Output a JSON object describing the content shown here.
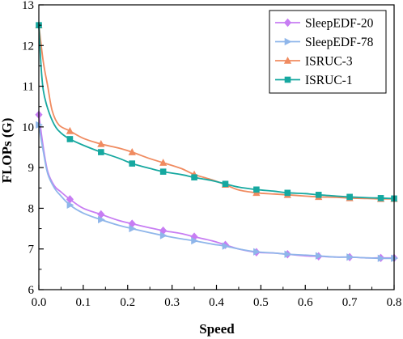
{
  "chart_data": {
    "type": "line",
    "xlabel": "Speed",
    "ylabel": "FLOPs (G)",
    "xlim": [
      0.0,
      0.8
    ],
    "ylim": [
      6,
      13
    ],
    "xticks": [
      "0.0",
      "0.1",
      "0.2",
      "0.3",
      "0.4",
      "0.5",
      "0.6",
      "0.7",
      "0.8"
    ],
    "yticks": [
      "6",
      "7",
      "8",
      "9",
      "10",
      "11",
      "12",
      "13"
    ],
    "grid": false,
    "legend_position": "top-right",
    "series": [
      {
        "name": "SleepEDF-20",
        "color": "#C77DF3",
        "marker": "diamond",
        "points": [
          [
            0.0,
            10.3
          ],
          [
            0.01,
            9.5
          ],
          [
            0.02,
            8.9
          ],
          [
            0.035,
            8.55
          ],
          [
            0.05,
            8.4
          ],
          [
            0.07,
            8.22
          ],
          [
            0.1,
            8.0
          ],
          [
            0.14,
            7.85
          ],
          [
            0.18,
            7.7
          ],
          [
            0.21,
            7.62
          ],
          [
            0.25,
            7.52
          ],
          [
            0.28,
            7.45
          ],
          [
            0.32,
            7.38
          ],
          [
            0.35,
            7.3
          ],
          [
            0.39,
            7.2
          ],
          [
            0.42,
            7.1
          ],
          [
            0.45,
            7.0
          ],
          [
            0.49,
            6.92
          ],
          [
            0.53,
            6.9
          ],
          [
            0.56,
            6.87
          ],
          [
            0.6,
            6.83
          ],
          [
            0.63,
            6.82
          ],
          [
            0.67,
            6.8
          ],
          [
            0.7,
            6.8
          ],
          [
            0.74,
            6.78
          ],
          [
            0.77,
            6.78
          ],
          [
            0.8,
            6.78
          ]
        ]
      },
      {
        "name": "SleepEDF-78",
        "color": "#8FB6EA",
        "marker": "triangle-right",
        "points": [
          [
            0.0,
            10.05
          ],
          [
            0.01,
            9.4
          ],
          [
            0.02,
            8.85
          ],
          [
            0.035,
            8.5
          ],
          [
            0.05,
            8.3
          ],
          [
            0.07,
            8.08
          ],
          [
            0.1,
            7.88
          ],
          [
            0.14,
            7.72
          ],
          [
            0.18,
            7.58
          ],
          [
            0.21,
            7.5
          ],
          [
            0.25,
            7.4
          ],
          [
            0.28,
            7.33
          ],
          [
            0.32,
            7.25
          ],
          [
            0.35,
            7.2
          ],
          [
            0.39,
            7.12
          ],
          [
            0.42,
            7.07
          ],
          [
            0.45,
            7.0
          ],
          [
            0.49,
            6.93
          ],
          [
            0.53,
            6.9
          ],
          [
            0.56,
            6.87
          ],
          [
            0.6,
            6.85
          ],
          [
            0.63,
            6.83
          ],
          [
            0.67,
            6.8
          ],
          [
            0.7,
            6.8
          ],
          [
            0.74,
            6.78
          ],
          [
            0.77,
            6.77
          ],
          [
            0.8,
            6.77
          ]
        ]
      },
      {
        "name": "ISRUC-3",
        "color": "#F08B60",
        "marker": "triangle-up",
        "points": [
          [
            0.0,
            12.5
          ],
          [
            0.01,
            11.6
          ],
          [
            0.02,
            11.0
          ],
          [
            0.03,
            10.4
          ],
          [
            0.045,
            10.05
          ],
          [
            0.07,
            9.9
          ],
          [
            0.1,
            9.72
          ],
          [
            0.14,
            9.58
          ],
          [
            0.18,
            9.48
          ],
          [
            0.21,
            9.38
          ],
          [
            0.25,
            9.22
          ],
          [
            0.28,
            9.12
          ],
          [
            0.32,
            8.98
          ],
          [
            0.35,
            8.83
          ],
          [
            0.39,
            8.7
          ],
          [
            0.42,
            8.58
          ],
          [
            0.45,
            8.45
          ],
          [
            0.49,
            8.38
          ],
          [
            0.53,
            8.35
          ],
          [
            0.56,
            8.33
          ],
          [
            0.6,
            8.3
          ],
          [
            0.63,
            8.28
          ],
          [
            0.67,
            8.27
          ],
          [
            0.7,
            8.25
          ],
          [
            0.74,
            8.24
          ],
          [
            0.77,
            8.23
          ],
          [
            0.8,
            8.23
          ]
        ]
      },
      {
        "name": "ISRUC-1",
        "color": "#16A8A0",
        "marker": "square",
        "points": [
          [
            0.0,
            12.5
          ],
          [
            0.005,
            11.5
          ],
          [
            0.01,
            10.9
          ],
          [
            0.02,
            10.45
          ],
          [
            0.035,
            10.05
          ],
          [
            0.05,
            9.85
          ],
          [
            0.07,
            9.7
          ],
          [
            0.1,
            9.55
          ],
          [
            0.14,
            9.38
          ],
          [
            0.18,
            9.23
          ],
          [
            0.21,
            9.1
          ],
          [
            0.25,
            8.98
          ],
          [
            0.28,
            8.9
          ],
          [
            0.32,
            8.83
          ],
          [
            0.35,
            8.76
          ],
          [
            0.39,
            8.68
          ],
          [
            0.42,
            8.6
          ],
          [
            0.45,
            8.52
          ],
          [
            0.49,
            8.46
          ],
          [
            0.53,
            8.42
          ],
          [
            0.56,
            8.38
          ],
          [
            0.6,
            8.36
          ],
          [
            0.63,
            8.33
          ],
          [
            0.67,
            8.3
          ],
          [
            0.7,
            8.28
          ],
          [
            0.74,
            8.26
          ],
          [
            0.77,
            8.25
          ],
          [
            0.8,
            8.24
          ]
        ]
      }
    ]
  }
}
